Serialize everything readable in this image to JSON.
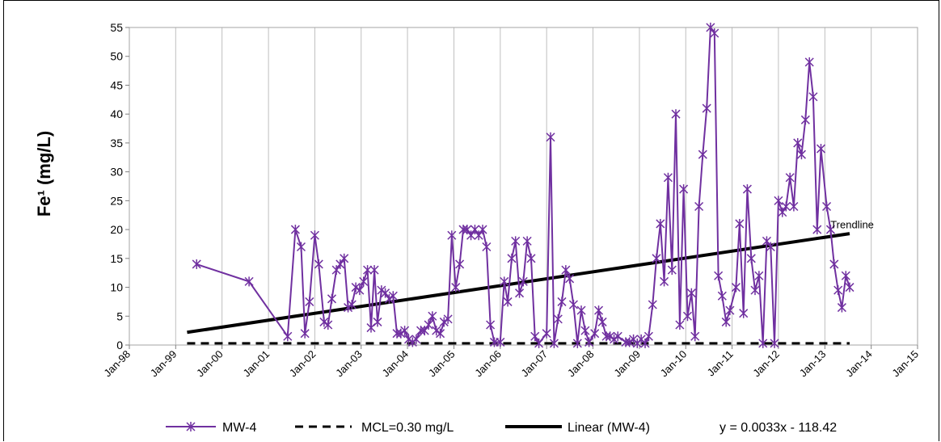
{
  "chart_data": {
    "type": "line",
    "title": "",
    "xlabel": "",
    "ylabel": "Fe¹ (mg/L)",
    "ylim": [
      0,
      55
    ],
    "yticks": [
      0,
      5,
      10,
      15,
      20,
      25,
      30,
      35,
      40,
      45,
      50,
      55
    ],
    "xlim": [
      "1998-01-01",
      "2015-01-01"
    ],
    "xticks": [
      "Jan-98",
      "Jan-99",
      "Jan-00",
      "Jan-01",
      "Jan-02",
      "Jan-03",
      "Jan-04",
      "Jan-05",
      "Jan-06",
      "Jan-07",
      "Jan-08",
      "Jan-09",
      "Jan-10",
      "Jan-11",
      "Jan-12",
      "Jan-13",
      "Jan-14",
      "Jan-15"
    ],
    "grid": "vertical",
    "legend_position": "bottom",
    "colors": {
      "series": "#7030A0",
      "mcl": "#000000",
      "trend": "#000000"
    },
    "series": [
      {
        "name": "MW-4",
        "marker": "asterisk",
        "points": [
          [
            "1999-06-15",
            14
          ],
          [
            "2000-08-01",
            11
          ],
          [
            "2001-06-01",
            1.5
          ],
          [
            "2001-08-01",
            20
          ],
          [
            "2001-09-15",
            17
          ],
          [
            "2001-10-15",
            2
          ],
          [
            "2001-11-20",
            7.5
          ],
          [
            "2002-01-01",
            19
          ],
          [
            "2002-02-01",
            14
          ],
          [
            "2002-03-15",
            4
          ],
          [
            "2002-04-15",
            3.5
          ],
          [
            "2002-05-15",
            8
          ],
          [
            "2002-06-20",
            13
          ],
          [
            "2002-07-20",
            14
          ],
          [
            "2002-08-20",
            15
          ],
          [
            "2002-09-20",
            6.5
          ],
          [
            "2002-10-20",
            7
          ],
          [
            "2002-11-20",
            10
          ],
          [
            "2002-12-20",
            9.5
          ],
          [
            "2003-01-20",
            11
          ],
          [
            "2003-02-20",
            13
          ],
          [
            "2003-03-20",
            3
          ],
          [
            "2003-04-15",
            13
          ],
          [
            "2003-05-10",
            4
          ],
          [
            "2003-06-10",
            9.5
          ],
          [
            "2003-07-10",
            9
          ],
          [
            "2003-08-10",
            8
          ],
          [
            "2003-09-10",
            8.5
          ],
          [
            "2003-10-10",
            2
          ],
          [
            "2003-11-10",
            2
          ],
          [
            "2003-12-10",
            2.5
          ],
          [
            "2004-01-10",
            1
          ],
          [
            "2004-02-10",
            0.5
          ],
          [
            "2004-03-10",
            1
          ],
          [
            "2004-04-15",
            2.5
          ],
          [
            "2004-05-15",
            2.5
          ],
          [
            "2004-06-15",
            3.5
          ],
          [
            "2004-07-15",
            5
          ],
          [
            "2004-08-15",
            2.5
          ],
          [
            "2004-09-15",
            2
          ],
          [
            "2004-10-15",
            4
          ],
          [
            "2004-11-15",
            4.5
          ],
          [
            "2004-12-15",
            19
          ],
          [
            "2005-01-15",
            10
          ],
          [
            "2005-02-15",
            14
          ],
          [
            "2005-03-15",
            20
          ],
          [
            "2005-04-15",
            20
          ],
          [
            "2005-05-15",
            19
          ],
          [
            "2005-06-15",
            20
          ],
          [
            "2005-07-15",
            19
          ],
          [
            "2005-08-15",
            20
          ],
          [
            "2005-09-15",
            17
          ],
          [
            "2005-10-15",
            3.5
          ],
          [
            "2005-11-15",
            0.5
          ],
          [
            "2006-01-01",
            0.5
          ],
          [
            "2006-02-01",
            11
          ],
          [
            "2006-03-01",
            7.5
          ],
          [
            "2006-04-01",
            15
          ],
          [
            "2006-05-01",
            18
          ],
          [
            "2006-06-01",
            9
          ],
          [
            "2006-07-01",
            11
          ],
          [
            "2006-08-01",
            18
          ],
          [
            "2006-09-01",
            15
          ],
          [
            "2006-10-01",
            1.5
          ],
          [
            "2006-11-01",
            0.3
          ],
          [
            "2007-01-01",
            2
          ],
          [
            "2007-02-01",
            36
          ],
          [
            "2007-03-01",
            0.3
          ],
          [
            "2007-04-01",
            4.5
          ],
          [
            "2007-05-01",
            7.5
          ],
          [
            "2007-06-01",
            13
          ],
          [
            "2007-07-01",
            11.5
          ],
          [
            "2007-08-01",
            7
          ],
          [
            "2007-09-01",
            0.3
          ],
          [
            "2007-10-01",
            6
          ],
          [
            "2007-11-01",
            2.5
          ],
          [
            "2007-12-01",
            0.5
          ],
          [
            "2008-01-15",
            2
          ],
          [
            "2008-02-15",
            6
          ],
          [
            "2008-03-15",
            4
          ],
          [
            "2008-04-15",
            1.5
          ],
          [
            "2008-05-15",
            1.5
          ],
          [
            "2008-06-15",
            1
          ],
          [
            "2008-07-15",
            1.5
          ],
          [
            "2008-09-15",
            0.5
          ],
          [
            "2008-10-15",
            0.5
          ],
          [
            "2008-11-15",
            1
          ],
          [
            "2008-12-15",
            0.3
          ],
          [
            "2009-01-15",
            1
          ],
          [
            "2009-02-15",
            0.3
          ],
          [
            "2009-03-15",
            1.5
          ],
          [
            "2009-04-15",
            7
          ],
          [
            "2009-05-15",
            15
          ],
          [
            "2009-06-15",
            21
          ],
          [
            "2009-07-15",
            11
          ],
          [
            "2009-08-15",
            29
          ],
          [
            "2009-09-15",
            13
          ],
          [
            "2009-10-15",
            40
          ],
          [
            "2009-11-15",
            3.5
          ],
          [
            "2009-12-15",
            27
          ],
          [
            "2010-01-15",
            5
          ],
          [
            "2010-02-15",
            9
          ],
          [
            "2010-03-15",
            1.5
          ],
          [
            "2010-04-15",
            24
          ],
          [
            "2010-05-15",
            33
          ],
          [
            "2010-06-15",
            41
          ],
          [
            "2010-07-15",
            55
          ],
          [
            "2010-08-15",
            54
          ],
          [
            "2010-09-15",
            12
          ],
          [
            "2010-10-15",
            8.5
          ],
          [
            "2010-11-15",
            4
          ],
          [
            "2010-12-15",
            6
          ],
          [
            "2011-02-01",
            10
          ],
          [
            "2011-03-01",
            21
          ],
          [
            "2011-04-01",
            5.5
          ],
          [
            "2011-05-01",
            27
          ],
          [
            "2011-06-01",
            15
          ],
          [
            "2011-07-01",
            9.5
          ],
          [
            "2011-08-01",
            12
          ],
          [
            "2011-09-01",
            0.3
          ],
          [
            "2011-10-01",
            18
          ],
          [
            "2011-11-01",
            17
          ],
          [
            "2011-12-01",
            0.3
          ],
          [
            "2012-01-01",
            25
          ],
          [
            "2012-02-01",
            23
          ],
          [
            "2012-03-01",
            24
          ],
          [
            "2012-04-01",
            29
          ],
          [
            "2012-05-01",
            24
          ],
          [
            "2012-06-01",
            35
          ],
          [
            "2012-07-01",
            33
          ],
          [
            "2012-08-01",
            39
          ],
          [
            "2012-09-01",
            49
          ],
          [
            "2012-10-01",
            43
          ],
          [
            "2012-11-01",
            20
          ],
          [
            "2012-12-01",
            34
          ],
          [
            "2013-01-15",
            24
          ],
          [
            "2013-02-15",
            20
          ],
          [
            "2013-03-15",
            14
          ],
          [
            "2013-04-15",
            9.5
          ],
          [
            "2013-05-15",
            6.5
          ],
          [
            "2013-06-15",
            12
          ],
          [
            "2013-07-15",
            10
          ]
        ]
      },
      {
        "name": "MCL=0.30 mg/L",
        "style": "dashed",
        "value": 0.3,
        "x_range": [
          "1999-04-01",
          "2013-07-15"
        ]
      },
      {
        "name": "Linear (MW-4)",
        "style": "solid",
        "x_range": [
          "1999-04-01",
          "2013-07-15"
        ],
        "y_range": [
          2.2,
          19.3
        ]
      }
    ],
    "annotations": [
      {
        "text": "Trendline",
        "x": "2013-05-01",
        "y": 20.2
      },
      {
        "text": "y = 0.0033x - 118.42"
      }
    ]
  }
}
